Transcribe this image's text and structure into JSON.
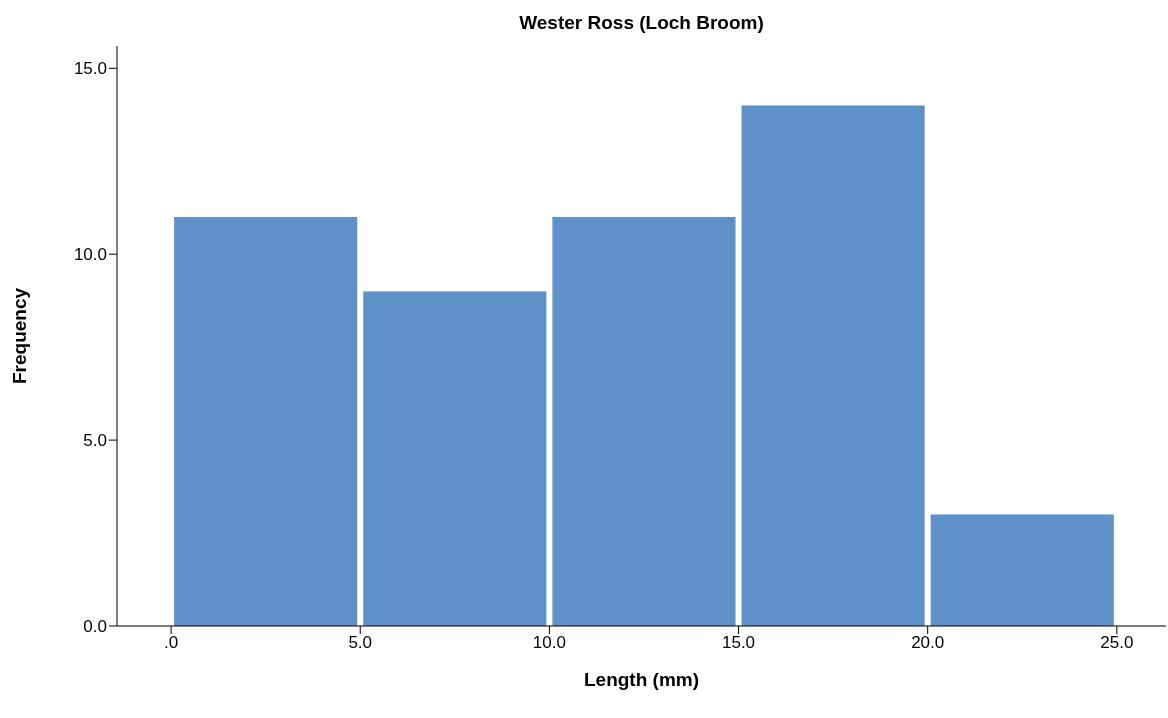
{
  "chart_data": {
    "type": "histogram",
    "title": "Wester Ross (Loch Broom)",
    "xlabel": "Length (mm)",
    "ylabel": "Frequency",
    "bins": [
      0,
      5,
      10,
      15,
      20,
      25
    ],
    "values": [
      11,
      9,
      11,
      14,
      3
    ],
    "color": "#5f91c9",
    "xlim": [
      -1.43,
      26.3
    ],
    "ylim": [
      0,
      15.6
    ],
    "xticks": [
      {
        "value": 0,
        "label": ".0"
      },
      {
        "value": 5,
        "label": "5.0"
      },
      {
        "value": 10,
        "label": "10.0"
      },
      {
        "value": 15,
        "label": "15.0"
      },
      {
        "value": 20,
        "label": "20.0"
      },
      {
        "value": 25,
        "label": "25.0"
      }
    ],
    "yticks": [
      {
        "value": 0,
        "label": "0.0"
      },
      {
        "value": 5,
        "label": "5.0"
      },
      {
        "value": 10,
        "label": "10.0"
      },
      {
        "value": 15,
        "label": "15.0"
      }
    ],
    "grid": false,
    "legend": false
  }
}
